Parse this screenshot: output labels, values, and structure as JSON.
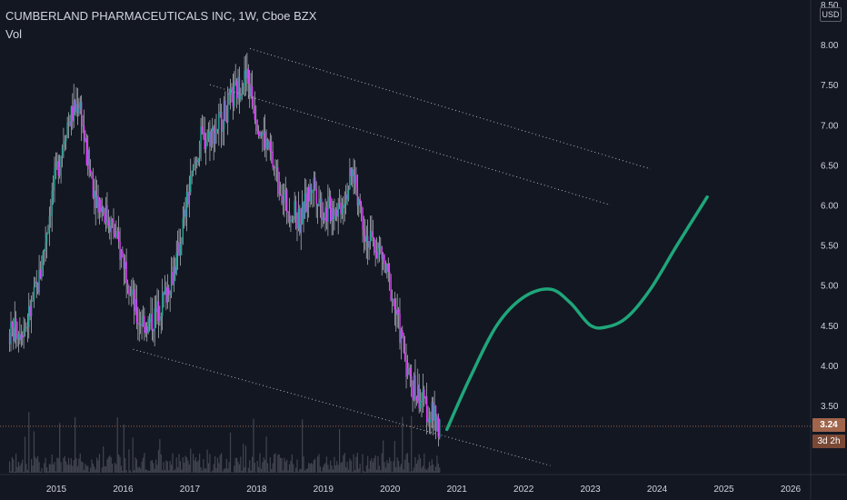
{
  "header": {
    "title": "CUMBERLAND PHARMACEUTICALS INC, 1W, Cboe BZX",
    "volume_label": "Vol"
  },
  "price_scale": {
    "currency": "USD",
    "last_price_tag": "3.24",
    "countdown_tag": "3d 2h"
  },
  "colors": {
    "background": "#131722",
    "up_candle": "#26a69a",
    "down_candle": "#e040fb",
    "wick": "#d1d4dc",
    "channel_line": "#b2b5be",
    "forecast_curve": "#1fa67a",
    "last_price_line": "#a0654b",
    "volume_bar": "#4a4e57"
  },
  "chart_data": {
    "type": "candlestick",
    "title": "CUMBERLAND PHARMACEUTICALS INC, 1W, Cboe BZX",
    "ylim": [
      2.95,
      8.55
    ],
    "xlim": [
      2014.3,
      2026.45
    ],
    "y_ticks": [
      "3.50",
      "4.00",
      "4.50",
      "5.00",
      "5.50",
      "6.00",
      "6.50",
      "7.00",
      "7.50",
      "8.00",
      "8.50"
    ],
    "x_ticks": [
      "2015",
      "2016",
      "2017",
      "2018",
      "2019",
      "2020",
      "2021",
      "2022",
      "2023",
      "2024",
      "2025",
      "2026"
    ],
    "last_price": 3.24,
    "price_path": [
      [
        2014.3,
        4.4
      ],
      [
        2014.55,
        4.5
      ],
      [
        2014.75,
        5.1
      ],
      [
        2014.95,
        6.2
      ],
      [
        2015.15,
        7.0
      ],
      [
        2015.35,
        7.3
      ],
      [
        2015.45,
        6.6
      ],
      [
        2015.6,
        6.1
      ],
      [
        2015.8,
        5.8
      ],
      [
        2016.05,
        5.2
      ],
      [
        2016.2,
        4.6
      ],
      [
        2016.4,
        4.5
      ],
      [
        2016.6,
        4.8
      ],
      [
        2016.8,
        5.3
      ],
      [
        2016.95,
        6.0
      ],
      [
        2017.15,
        6.8
      ],
      [
        2017.35,
        6.9
      ],
      [
        2017.55,
        7.2
      ],
      [
        2017.75,
        7.5
      ],
      [
        2017.85,
        7.6
      ],
      [
        2018.0,
        7.1
      ],
      [
        2018.25,
        6.5
      ],
      [
        2018.45,
        6.0
      ],
      [
        2018.65,
        5.8
      ],
      [
        2018.85,
        6.3
      ],
      [
        2019.0,
        5.9
      ],
      [
        2019.25,
        6.0
      ],
      [
        2019.45,
        6.4
      ],
      [
        2019.65,
        5.6
      ],
      [
        2019.85,
        5.4
      ],
      [
        2020.0,
        5.0
      ],
      [
        2020.15,
        4.4
      ],
      [
        2020.3,
        3.8
      ],
      [
        2020.45,
        3.6
      ],
      [
        2020.6,
        3.4
      ],
      [
        2020.75,
        3.24
      ]
    ],
    "channel_lines": [
      {
        "from": [
          2017.9,
          7.95
        ],
        "to": [
          2023.9,
          6.45
        ]
      },
      {
        "from": [
          2017.3,
          7.5
        ],
        "to": [
          2023.3,
          6.0
        ]
      },
      {
        "from": [
          2016.15,
          4.2
        ],
        "to": [
          2022.4,
          2.75
        ]
      }
    ],
    "forecast_curve": [
      [
        2020.85,
        3.2
      ],
      [
        2021.2,
        3.85
      ],
      [
        2021.6,
        4.5
      ],
      [
        2022.0,
        4.85
      ],
      [
        2022.4,
        4.95
      ],
      [
        2022.7,
        4.78
      ],
      [
        2023.0,
        4.5
      ],
      [
        2023.25,
        4.48
      ],
      [
        2023.55,
        4.6
      ],
      [
        2023.9,
        4.95
      ],
      [
        2024.3,
        5.5
      ],
      [
        2024.75,
        6.1
      ]
    ]
  }
}
